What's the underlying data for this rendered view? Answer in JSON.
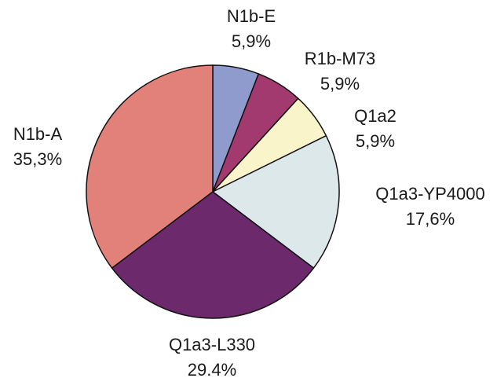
{
  "chart_data": {
    "type": "pie",
    "categories": [
      "N1b-E",
      "R1b-M73",
      "Q1a2",
      "Q1a3-YP4000",
      "Q1a3-L330",
      "N1b-A"
    ],
    "values": [
      5.9,
      5.9,
      5.9,
      17.6,
      29.4,
      35.3
    ],
    "value_labels": [
      "5,9%",
      "5,9%",
      "5,9%",
      "17,6%",
      "29.4%",
      "35,3%"
    ],
    "colors": [
      "#8e9bcc",
      "#a2396f",
      "#f9f4c9",
      "#dde8ea",
      "#6c2a6d",
      "#e2807a"
    ]
  }
}
